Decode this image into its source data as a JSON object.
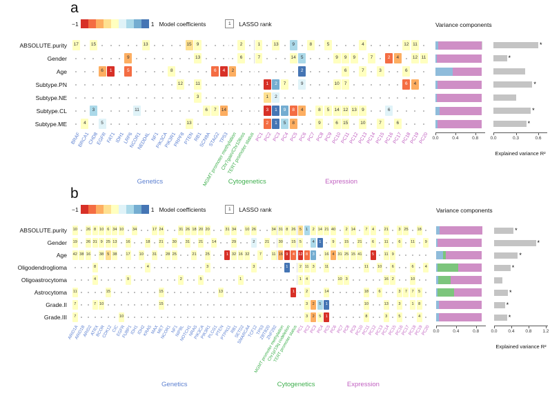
{
  "palette": {
    "r4": "#d73027",
    "r3": "#f46d43",
    "r2": "#fdae61",
    "r1": "#fee090",
    "y": "#ffffbf",
    "b1": "#e0f3f8",
    "b2": "#abd9e9",
    "b3": "#74add1",
    "b4": "#4575b4"
  },
  "legend_strip": [
    "#d73027",
    "#f46d43",
    "#fdae61",
    "#fee090",
    "#ffffbf",
    "#e0f3f8",
    "#abd9e9",
    "#74add1",
    "#4575b4"
  ],
  "dark_codes": [
    "r4",
    "r3",
    "b4",
    "b3"
  ],
  "series_colors": {
    "lb": "#8fbcdb",
    "pk": "#cf8fc6",
    "gn": "#7cc57c",
    "gy": "#cfcfcf"
  },
  "r2_color": "#c4c4c4",
  "group_colors": {
    "Genetics": "#5b7fd0",
    "Cytogenetics": "#3faf4e",
    "Expression": "#c05fc0"
  },
  "chart_data": [
    {
      "type": "heatmap",
      "panel_label": "a",
      "legend": {
        "min": "−1",
        "max": "1",
        "coeff_label": "Model coefficients",
        "lasso_box": "1",
        "lasso_label": "LASSO rank"
      },
      "variance_title": "Variance components",
      "r2_label": "Explained variance R²",
      "rows": [
        "ABSOLUTE.purity",
        "Gender",
        "Age",
        "Subtype.PN",
        "Subtype.NE",
        "Subtype.CL",
        "Subtype.ME"
      ],
      "groups": [
        {
          "name": "Genetics",
          "cols": [
            "BRAF",
            "BRCA1",
            "CHD8",
            "EGFR",
            "FAT1",
            "IDH1",
            "LRP6",
            "NCOR1",
            "NEDD4L",
            "NF1",
            "PIK3CA",
            "PIK3R1",
            "PRPF8",
            "PTEN",
            "RB1",
            "SCN9A",
            "STAG2",
            "TP53"
          ]
        },
        {
          "name": "Cytogenetics",
          "cols": [
            "MGMT promoter methylation",
            "Chr7gain/Chr10loss",
            "TERT promoter status"
          ]
        },
        {
          "name": "Expression",
          "cols": [
            "PC1",
            "PC2",
            "PC3",
            "PC4",
            "PC5",
            "PC6",
            "PC7",
            "PC8",
            "PC9",
            "PC10",
            "PC11",
            "PC12",
            "PC13",
            "PC14",
            "PC15",
            "PC16",
            "PC17",
            "PC18",
            "PC19",
            "PC20"
          ]
        }
      ],
      "cells": [
        {
          "0": "y:17",
          "2": "y:15",
          "8": "y:13",
          "13": "r1:15",
          "14": "y:9",
          "19": "y:2",
          "21": "y:1",
          "23": "y:13",
          "25": "b2:9",
          "27": "y:8",
          "29": "y:5",
          "33": "y:4",
          "38": "y:12",
          "39": "y:11"
        },
        {
          "6": "r2:9",
          "14": "y:13",
          "19": "y:6",
          "21": "y:7",
          "25": "y:14",
          "26": "b2:5",
          "30": "y:9",
          "31": "y:9",
          "32": "y:9",
          "34": "y:7",
          "36": "r3:2",
          "37": "r2:4",
          "39": "y:12",
          "40": "y:11"
        },
        {
          "3": "r2:6",
          "4": "r4:1",
          "6": "r3:5",
          "11": "y:8",
          "16": "r3:6",
          "17": "r4:4",
          "18": "r2:2",
          "26": "b4:2",
          "31": "y:6",
          "33": "y:7",
          "35": "y:3",
          "38": "y:6"
        },
        {
          "12": "y:12",
          "14": "y:11",
          "22": "r4:1",
          "23": "b3:2",
          "24": "y:7",
          "26": "b1:9",
          "30": "y:10",
          "31": "y:7",
          "38": "r3:6",
          "39": "r2:4"
        },
        {
          "14": "y:3",
          "22": "r1:1",
          "23": "b1:2"
        },
        {
          "2": "b2:3",
          "7": "b1:11",
          "15": "y:6",
          "16": "y:7",
          "17": "r2:14",
          "22": "r4:3",
          "23": "b4:1",
          "24": "b3:9",
          "25": "r3:8",
          "26": "r2:4",
          "28": "y:8",
          "29": "y:5",
          "30": "y:14",
          "31": "y:12",
          "32": "y:13",
          "33": "y:9",
          "36": "b1:6"
        },
        {
          "1": "y:4",
          "3": "b1:5",
          "13": "y:13",
          "22": "r3:2",
          "23": "b4:1",
          "24": "b2:5",
          "25": "r2:8",
          "28": "y:9",
          "30": "y:6",
          "31": "y:15",
          "33": "y:10",
          "35": "y:7",
          "37": "y:6"
        }
      ],
      "variance": {
        "ticks": [
          [
            "0.0",
            0
          ],
          [
            "0.4",
            0.4
          ],
          [
            "0.8",
            0.8
          ]
        ],
        "max": 1.0,
        "bars": [
          [
            [
              "lb",
              0.05
            ],
            [
              "pk",
              0.88
            ],
            [
              "gy",
              0.02
            ]
          ],
          [
            [
              "lb",
              0.03
            ],
            [
              "pk",
              0.9
            ]
          ],
          [
            [
              "lb",
              0.35
            ],
            [
              "pk",
              0.58
            ]
          ],
          [
            [
              "lb",
              0.04
            ],
            [
              "pk",
              0.89
            ]
          ],
          [
            [
              "lb",
              0.03
            ],
            [
              "pk",
              0.9
            ]
          ],
          [
            [
              "lb",
              0.08
            ],
            [
              "pk",
              0.85
            ]
          ],
          [
            [
              "lb",
              0.04
            ],
            [
              "pk",
              0.89
            ]
          ]
        ]
      },
      "r2": {
        "ticks": [
          [
            "0.0",
            0
          ],
          [
            "0.3",
            0.3
          ],
          [
            "0.6",
            0.6
          ]
        ],
        "max": 0.72,
        "bars": [
          [
            0.6,
            "*"
          ],
          [
            0.18,
            "*"
          ],
          [
            0.42,
            ""
          ],
          [
            0.52,
            "*"
          ],
          [
            0.3,
            ""
          ],
          [
            0.5,
            "*"
          ],
          [
            0.44,
            "*"
          ]
        ]
      }
    },
    {
      "type": "heatmap",
      "panel_label": "b",
      "legend": {
        "min": "−1",
        "max": "1",
        "coeff_label": "Model coefficients",
        "lasso_box": "1",
        "lasso_label": "LASSO rank"
      },
      "variance_title": "Variance components",
      "r2_label": "Explained variance R²",
      "rows": [
        "ABSOLUTE.purity",
        "Gender",
        "Age",
        "Oligodendroglioma",
        "Oligoastrocytoma",
        "Astrocytoma",
        "Grade.II",
        "Grade.III"
      ],
      "groups": [
        {
          "name": "Genetics",
          "cols": [
            "ARID1A",
            "ARID1B",
            "ARID2",
            "ATRX",
            "BCOR",
            "CDK12",
            "CIC",
            "EGFR",
            "FUBP1",
            "IDH1",
            "IDH2",
            "KRAS",
            "MAX",
            "MET",
            "NCOR1",
            "NF1",
            "NIPBL",
            "NOTCH1",
            "NRAS",
            "PIK3CA",
            "PIK3R1",
            "PLCG1",
            "PTEN",
            "PTPN11",
            "RB1",
            "SETD2",
            "SMARCA4",
            "TCF12",
            "TP53",
            "ZBTB20",
            "ZNF292"
          ]
        },
        {
          "name": "Cytogenetics",
          "cols": [
            "MGMT promoter methylation",
            "Chr1p/19q codeletion",
            "TERT promoter status"
          ]
        },
        {
          "name": "Expression",
          "cols": [
            "PC1",
            "PC2",
            "PC3",
            "PC4",
            "PC5",
            "PC6",
            "PC7",
            "PC8",
            "PC9",
            "PC10",
            "PC11",
            "PC12",
            "PC13",
            "PC14",
            "PC15",
            "PC16",
            "PC17",
            "PC18",
            "PC19",
            "PC20"
          ]
        }
      ],
      "cells": [
        {
          "0": "y:10",
          "2": "y:26",
          "3": "y:8",
          "4": "y:10",
          "5": "y:6",
          "6": "y:34",
          "7": "y:10",
          "9": "y:34",
          "12": "y:17",
          "13": "y:24",
          "16": "y:31",
          "17": "y:26",
          "18": "y:18",
          "19": "y:20",
          "20": "y:20",
          "23": "y:31",
          "24": "y:34",
          "26": "y:10",
          "27": "y:26",
          "30": "y:34",
          "31": "y:31",
          "32": "y:8",
          "33": "y:26",
          "34": "r1:5",
          "35": "b2:1",
          "36": "y:2",
          "37": "y:14",
          "38": "y:21",
          "39": "y:40",
          "41": "y:2",
          "42": "y:14",
          "44": "y:7",
          "45": "y:4",
          "47": "y:21",
          "49": "y:3",
          "50": "y:25",
          "52": "y:18"
        },
        {
          "0": "y:19",
          "2": "y:26",
          "3": "y:31",
          "4": "y:9",
          "5": "y:25",
          "6": "y:13",
          "8": "y:16",
          "11": "y:18",
          "13": "y:21",
          "15": "y:30",
          "17": "y:31",
          "19": "y:21",
          "21": "y:14",
          "24": "y:29",
          "27": "b1:2",
          "29": "y:21",
          "31": "y:30",
          "33": "y:15",
          "34": "y:5",
          "36": "b2:4",
          "37": "b4:1",
          "39": "y:9",
          "41": "y:15",
          "43": "y:21",
          "45": "y:6",
          "47": "y:11",
          "49": "y:6",
          "51": "y:11",
          "53": "y:9"
        },
        {
          "0": "y:42",
          "1": "y:38",
          "2": "y:16",
          "4": "y:38",
          "5": "r1:5",
          "6": "y:38",
          "8": "y:17",
          "10": "y:10",
          "12": "y:31",
          "14": "y:28",
          "15": "y:25",
          "18": "y:21",
          "20": "y:25",
          "23": "r4:1",
          "24": "y:32",
          "25": "y:16",
          "26": "y:32",
          "28": "y:7",
          "30": "y:11",
          "31": "r2:16",
          "32": "r4:9",
          "33": "r3:4",
          "34": "r4:12",
          "35": "r3:8",
          "36": "b3:3",
          "38": "y:16",
          "39": "r2:4",
          "40": "y:31",
          "41": "y:25",
          "42": "y:15",
          "43": "y:41",
          "45": "r4:5",
          "47": "y:11",
          "48": "y:9"
        },
        {
          "3": "y:8",
          "11": "y:4",
          "20": "y:3",
          "27": "y:3",
          "32": "b4:1",
          "34": "y:2",
          "35": "y:11",
          "36": "y:3",
          "38": "y:11",
          "44": "y:11",
          "46": "y:10",
          "48": "y:6",
          "51": "y:6",
          "53": "y:4"
        },
        {
          "3": "y:4",
          "8": "y:9",
          "16": "y:2",
          "19": "y:5",
          "25": "y:1",
          "34": "y:1",
          "35": "y:4",
          "40": "y:10",
          "41": "y:3",
          "47": "y:16",
          "48": "y:2",
          "51": "y:10"
        },
        {
          "0": "y:11",
          "5": "y:15",
          "13": "y:15",
          "22": "y:13",
          "33": "r4:1",
          "35": "y:2",
          "38": "y:14",
          "44": "y:18",
          "46": "y:6",
          "49": "y:3",
          "50": "y:7",
          "51": "y:7",
          "52": "y:5"
        },
        {
          "0": "y:7",
          "3": "y:7",
          "4": "y:10",
          "13": "y:15",
          "35": "y:3",
          "36": "r2:2",
          "37": "b2:5",
          "38": "b4:1",
          "44": "y:10",
          "47": "y:13",
          "49": "y:3",
          "51": "y:1",
          "52": "y:8"
        },
        {
          "0": "y:7",
          "7": "y:10",
          "35": "y:3",
          "36": "r2:2",
          "37": "y:5",
          "38": "r4:1",
          "44": "y:8",
          "47": "y:3",
          "49": "y:5",
          "52": "y:4"
        }
      ],
      "variance": {
        "ticks": [
          [
            "0.0",
            0
          ],
          [
            "0.4",
            0.4
          ],
          [
            "0.8",
            0.8
          ]
        ],
        "max": 1.0,
        "bars": [
          [
            [
              "lb",
              0.07
            ],
            [
              "pk",
              0.86
            ]
          ],
          [
            [
              "lb",
              0.03
            ],
            [
              "pk",
              0.89
            ]
          ],
          [
            [
              "lb",
              0.14
            ],
            [
              "gn",
              0.05
            ],
            [
              "pk",
              0.73
            ]
          ],
          [
            [
              "lb",
              0.03
            ],
            [
              "gn",
              0.42
            ],
            [
              "pk",
              0.47
            ]
          ],
          [
            [
              "lb",
              0.04
            ],
            [
              "gn",
              0.25
            ],
            [
              "pk",
              0.63
            ]
          ],
          [
            [
              "lb",
              0.03
            ],
            [
              "gn",
              0.33
            ],
            [
              "pk",
              0.56
            ]
          ],
          [
            [
              "lb",
              0.06
            ],
            [
              "pk",
              0.86
            ]
          ],
          [
            [
              "lb",
              0.05
            ],
            [
              "pk",
              0.87
            ]
          ]
        ]
      },
      "r2": {
        "ticks": [
          [
            "0.0",
            0
          ],
          [
            "0.4",
            0.4
          ],
          [
            "0.8",
            0.8
          ],
          [
            "1.2",
            1.2
          ]
        ],
        "max": 1.25,
        "bars": [
          [
            0.45,
            "*"
          ],
          [
            0.97,
            "*"
          ],
          [
            0.55,
            "*"
          ],
          [
            0.38,
            "*"
          ],
          [
            0.2,
            ""
          ],
          [
            0.32,
            "*"
          ],
          [
            0.25,
            "*"
          ],
          [
            0.3,
            "*"
          ]
        ]
      }
    }
  ]
}
